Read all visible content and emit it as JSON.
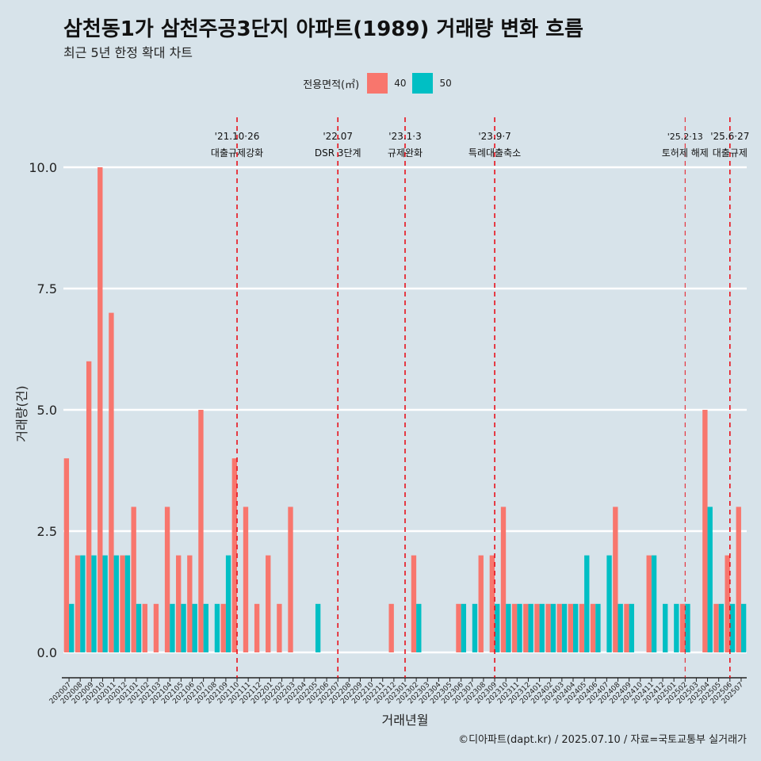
{
  "header": {
    "title": "삼천동1가 삼천주공3단지 아파트(1989) 거래량 변화 흐름",
    "subtitle": "최근 5년 한정 확대 차트"
  },
  "legend": {
    "title": "전용면적(㎡)",
    "items": [
      {
        "label": "40",
        "color": "#f8766d"
      },
      {
        "label": "50",
        "color": "#00bfc4"
      }
    ]
  },
  "caption": "©디아파트(dapt.kr) / 2025.07.10 / 자료=국토교통부 실거래가",
  "chart_data": {
    "type": "bar",
    "xlabel": "거래년월",
    "ylabel": "거래량(건)",
    "ylim": [
      0,
      10
    ],
    "yticks": [
      0.0,
      2.5,
      5.0,
      7.5,
      10.0
    ],
    "ytick_labels": [
      "0.0",
      "2.5",
      "5.0",
      "7.5",
      "10.0"
    ],
    "categories": [
      "202007",
      "202008",
      "202009",
      "202010",
      "202011",
      "202012",
      "202101",
      "202102",
      "202103",
      "202104",
      "202105",
      "202106",
      "202107",
      "202108",
      "202109",
      "202110",
      "202111",
      "202112",
      "202201",
      "202202",
      "202203",
      "202204",
      "202205",
      "202206",
      "202207",
      "202208",
      "202209",
      "202210",
      "202211",
      "202212",
      "202301",
      "202302",
      "202303",
      "202304",
      "202305",
      "202306",
      "202307",
      "202308",
      "202309",
      "202310",
      "202311",
      "202312",
      "202401",
      "202402",
      "202403",
      "202404",
      "202405",
      "202406",
      "202407",
      "202408",
      "202409",
      "202410",
      "202411",
      "202412",
      "202501",
      "202502",
      "202503",
      "202504",
      "202505",
      "202506",
      "202507"
    ],
    "series": [
      {
        "name": "40",
        "color": "#f8766d",
        "values": [
          4,
          2,
          6,
          10,
          7,
          2,
          3,
          1,
          1,
          3,
          2,
          2,
          5,
          0,
          1,
          4,
          3,
          1,
          2,
          1,
          3,
          0,
          0,
          0,
          0,
          0,
          0,
          0,
          0,
          1,
          0,
          2,
          0,
          0,
          0,
          1,
          0,
          2,
          2,
          3,
          1,
          1,
          1,
          1,
          1,
          1,
          1,
          1,
          0,
          3,
          1,
          0,
          2,
          0,
          0,
          1,
          0,
          5,
          1,
          2,
          3
        ]
      },
      {
        "name": "50",
        "color": "#00bfc4",
        "values": [
          1,
          2,
          2,
          2,
          2,
          2,
          1,
          0,
          0,
          1,
          1,
          1,
          1,
          1,
          2,
          0,
          0,
          0,
          0,
          0,
          0,
          0,
          1,
          0,
          0,
          0,
          0,
          0,
          0,
          0,
          0,
          1,
          0,
          0,
          0,
          1,
          1,
          0,
          1,
          1,
          1,
          1,
          1,
          1,
          1,
          1,
          2,
          1,
          2,
          1,
          1,
          0,
          2,
          1,
          1,
          1,
          0,
          3,
          1,
          1,
          1
        ]
      }
    ],
    "annotations": [
      {
        "at": "202110",
        "date": "'21.10·26",
        "label": "대출규제강화",
        "thin": false
      },
      {
        "at": "202207",
        "date": "'22.07",
        "label": "DSR 3단계",
        "thin": false
      },
      {
        "at": "202301",
        "date": "'23.1·3",
        "label": "규제완화",
        "thin": false
      },
      {
        "at": "202309",
        "date": "'23.9·7",
        "label": "특례대출축소",
        "thin": false
      },
      {
        "at": "202502",
        "date": "'25.2·13",
        "label": "토허제 해제",
        "thin": true
      },
      {
        "at": "202506",
        "date": "'25.6·27",
        "label": "대출규제",
        "thin": false
      }
    ]
  }
}
